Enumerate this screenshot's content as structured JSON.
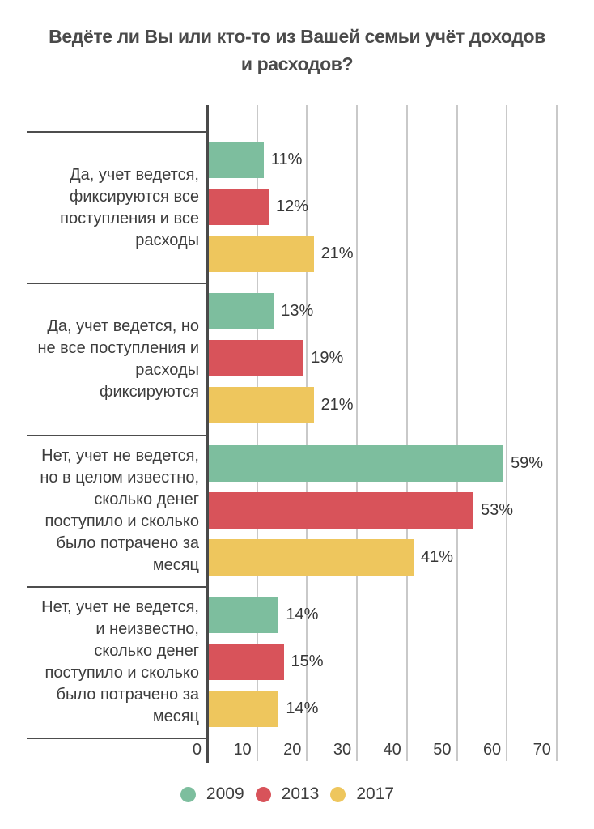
{
  "chart_data": {
    "type": "bar",
    "orientation": "horizontal",
    "title": "Ведёте ли Вы или кто-то из Вашей семьи учёт доходов\nи расходов?",
    "categories": [
      "Да, учет ведется,\nфиксируются все\nпоступления и все\nрасходы",
      "Да, учет ведется, но\nне все поступления и\nрасходы\nфиксируются",
      "Нет, учет не ведется,\nно в целом известно,\nсколько денег\nпоступило и сколько\nбыло потрачено за\nмесяц",
      "Нет, учет не ведется,\nи неизвестно,\nсколько денег\nпоступило и сколько\nбыло потрачено за\nмесяц"
    ],
    "series": [
      {
        "name": "2009",
        "color": "#7DBE9E",
        "values": [
          11,
          13,
          59,
          14
        ]
      },
      {
        "name": "2013",
        "color": "#D8535A",
        "values": [
          12,
          19,
          53,
          15
        ]
      },
      {
        "name": "2017",
        "color": "#EEC65D",
        "values": [
          21,
          21,
          41,
          14
        ]
      }
    ],
    "value_suffix": "%",
    "x_ticks": [
      0,
      10,
      20,
      30,
      40,
      50,
      60,
      70
    ],
    "xlim": [
      0,
      72
    ],
    "grid": true,
    "legend_position": "bottom",
    "colors": {
      "title_text": "#4a4a4a",
      "label_text": "#3d3d3d",
      "value_text": "#363636",
      "tick_text": "#3c3c3c",
      "legend_text": "#3d3d3d",
      "gridline": "#c9c9c9",
      "axis_line": "#4a4a4a",
      "separator": "#4d4d4d",
      "background": "#ffffff"
    }
  }
}
